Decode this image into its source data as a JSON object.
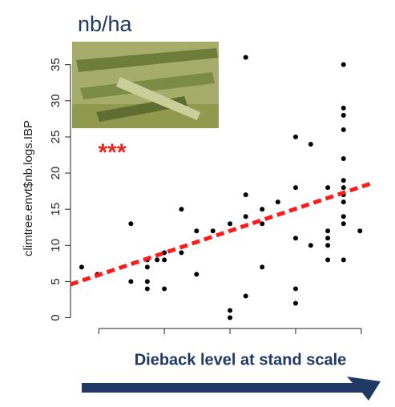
{
  "chart_data": {
    "type": "scatter",
    "title": "nb/ha",
    "y_label": "climtree.envt$nb.logs.IBP",
    "x_label": "Dieback level at stand scale",
    "annotation": "***",
    "annotation_color": "#e8261e",
    "color": "#000000",
    "x": [
      0.74,
      0.98,
      1.49,
      1.49,
      1.74,
      1.74,
      1.74,
      1.74,
      1.89,
      2.0,
      2.0,
      2.0,
      2.26,
      2.26,
      2.49,
      2.49,
      2.74,
      3.0,
      3.0,
      3.0,
      3.24,
      3.24,
      3.24,
      3.24,
      3.49,
      3.49,
      3.49,
      3.73,
      4.0,
      4.0,
      4.0,
      4.0,
      4.0,
      4.23,
      4.23,
      4.49,
      4.49,
      4.49,
      4.49,
      4.49,
      4.73,
      4.73,
      4.73,
      4.73,
      4.73,
      4.73,
      4.73,
      4.73,
      4.73,
      4.73,
      4.73,
      4.73,
      4.98
    ],
    "values": [
      7,
      6,
      13,
      5,
      8,
      7,
      5,
      4,
      8,
      9,
      8,
      4,
      15,
      9,
      12,
      6,
      12,
      13,
      1,
      0,
      36,
      17,
      14,
      3,
      15,
      13,
      7,
      16,
      25,
      18,
      11,
      4,
      2,
      24,
      10,
      18,
      12,
      11,
      10,
      8,
      35,
      29,
      28,
      26,
      22,
      19,
      18,
      17,
      16,
      14,
      13,
      8,
      12
    ],
    "fit": {
      "x": [
        0.57,
        5.16
      ],
      "values": [
        4.6,
        18.6
      ],
      "color": "#ff1a1a"
    },
    "xlim": [
      0.57,
      5.16
    ],
    "xticks": [
      1,
      2,
      3,
      4,
      5
    ],
    "ylim": [
      -2.6,
      38.4
    ],
    "yticks": [
      0,
      5,
      10,
      15,
      20,
      25,
      30,
      35
    ]
  }
}
